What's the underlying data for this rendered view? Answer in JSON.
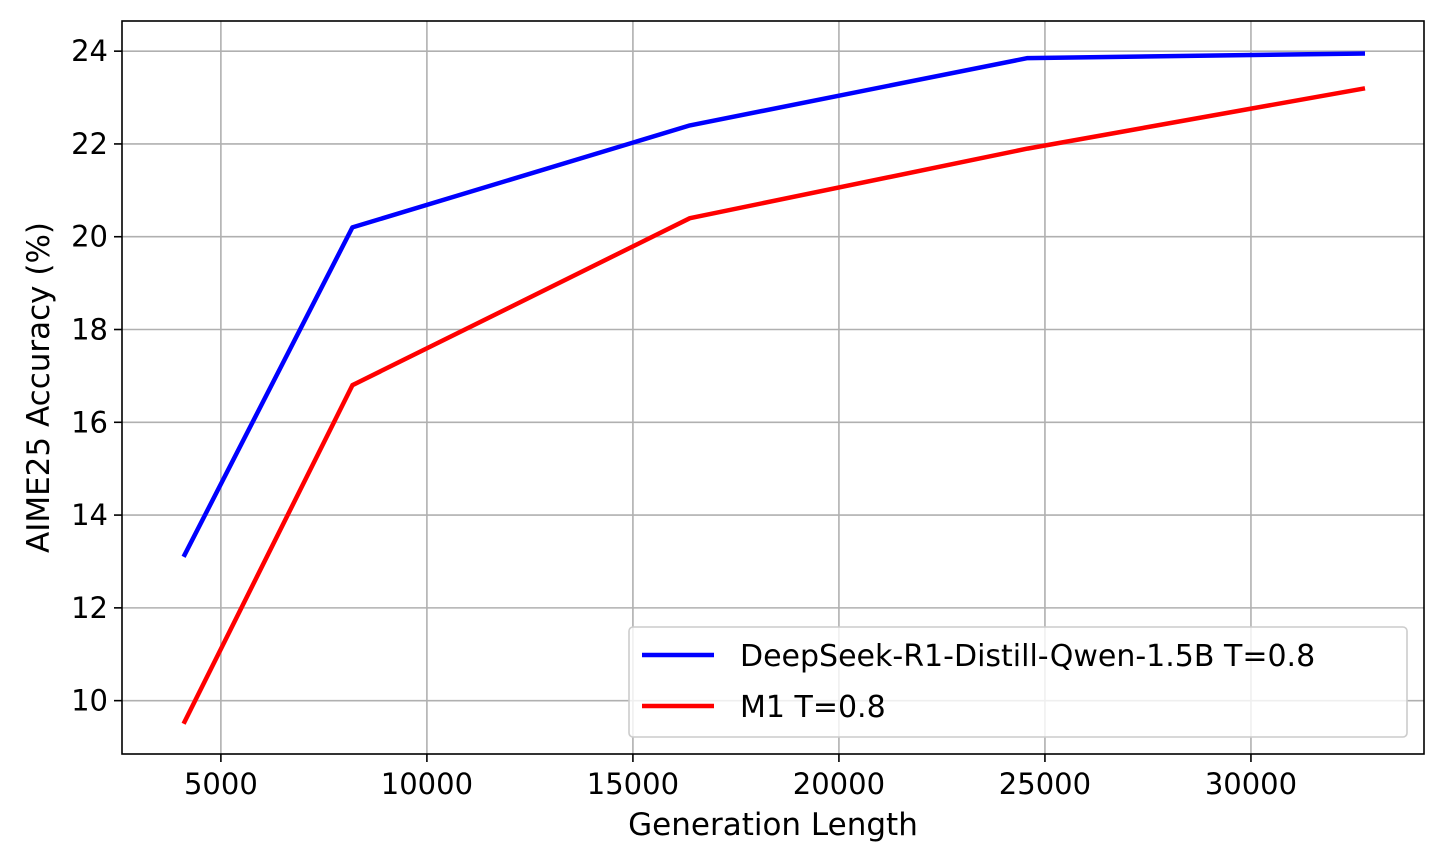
{
  "chart_data": {
    "type": "line",
    "xlabel": "Generation Length",
    "ylabel": "AIME25 Accuracy (%)",
    "xlim": [
      2600,
      34200
    ],
    "ylim": [
      8.85,
      24.65
    ],
    "xticks": [
      5000,
      10000,
      15000,
      20000,
      25000,
      30000
    ],
    "yticks": [
      10,
      12,
      14,
      16,
      18,
      20,
      22,
      24
    ],
    "grid": true,
    "legend_position": "lower-right",
    "series": [
      {
        "name": "DeepSeek-R1-Distill-Qwen-1.5B T=0.8",
        "color": "#0000ff",
        "x": [
          4096,
          8192,
          16384,
          24576,
          32768
        ],
        "y": [
          13.1,
          20.2,
          22.4,
          23.85,
          23.95
        ]
      },
      {
        "name": "M1 T=0.8",
        "color": "#ff0000",
        "x": [
          4096,
          8192,
          16384,
          24576,
          32768
        ],
        "y": [
          9.5,
          16.8,
          20.4,
          21.9,
          23.2
        ]
      }
    ]
  }
}
